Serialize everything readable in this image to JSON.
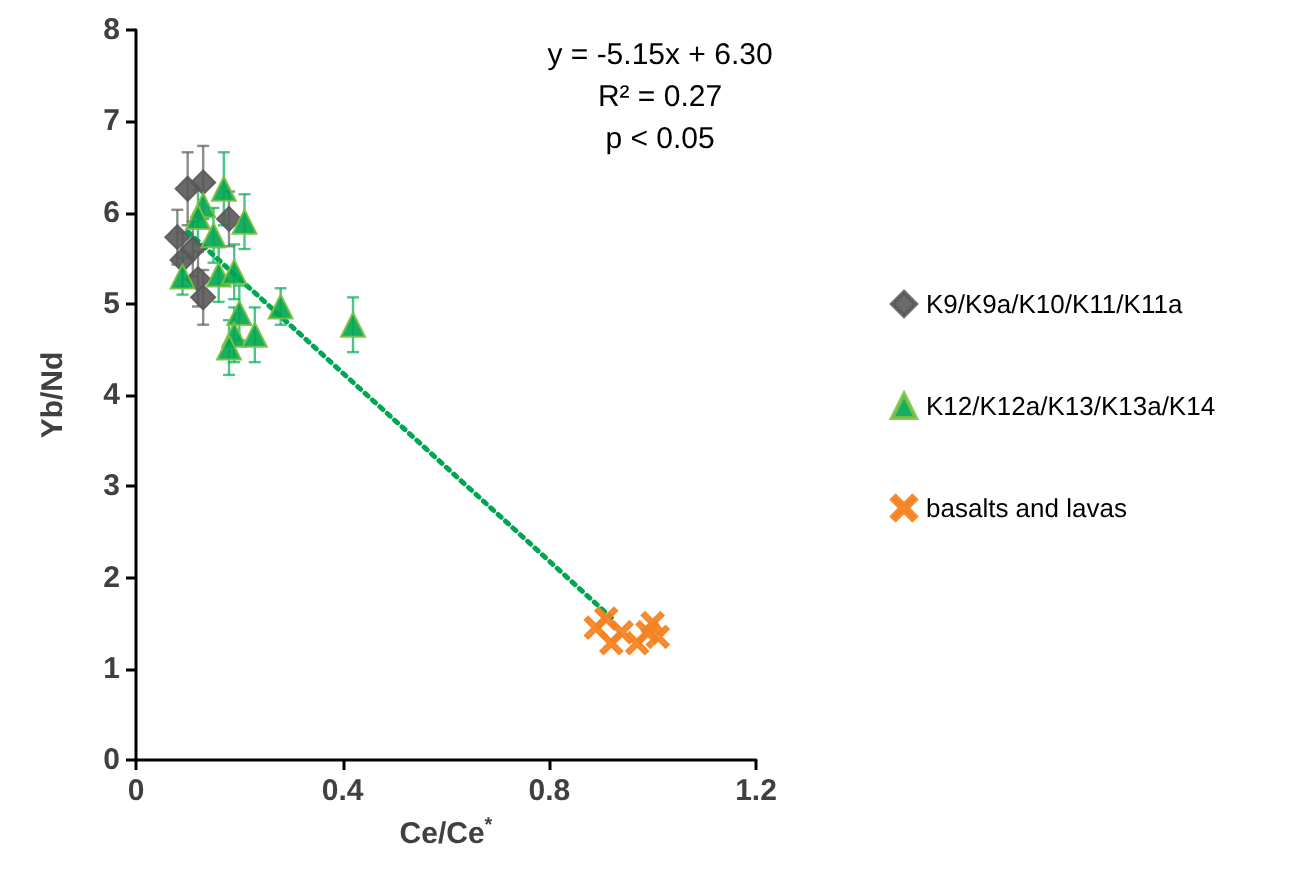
{
  "chart_data": {
    "type": "scatter",
    "xlabel": "Ce/Ce$^{*}$",
    "ylabel": "Yb/Nd",
    "xlim": [
      0,
      1.2
    ],
    "xticks": [
      0,
      0.4,
      0.8,
      1.2
    ],
    "ylim": [
      0,
      8
    ],
    "yticks": [
      0,
      1,
      2,
      3,
      4,
      5,
      6,
      7,
      8
    ],
    "grid": false,
    "legend": "right",
    "annotations": [
      "y = -5.15x + 6.30",
      "R² = 0.27",
      "p < 0.05"
    ],
    "series": [
      {
        "name": "K9/K9a/K10/K11/K11a",
        "color": "#595959",
        "marker": "diamond",
        "x": [
          0.1,
          0.13,
          0.08,
          0.09,
          0.12,
          0.13,
          0.18,
          0.14,
          0.11
        ],
        "values": [
          6.26,
          6.33,
          5.73,
          5.48,
          5.27,
          5.07,
          5.93,
          null,
          5.6
        ],
        "errors": [
          0.4,
          0.4,
          0.3,
          0.3,
          0.3,
          0.3,
          0.3,
          null,
          0.3
        ]
      },
      {
        "name": "K12/K12a/K13/K13a/K14",
        "color": "#00a651",
        "marker": "triangle",
        "x": [
          0.17,
          0.13,
          0.21,
          0.09,
          0.16,
          0.19,
          0.2,
          0.19,
          0.23,
          0.18,
          0.28,
          0.42,
          0.15,
          0.12
        ],
        "values": [
          6.26,
          6.08,
          5.9,
          5.3,
          5.32,
          5.35,
          4.9,
          4.66,
          4.66,
          4.52,
          4.97,
          4.77,
          5.75,
          5.95
        ],
        "errors": [
          0.4,
          null,
          0.3,
          0.2,
          0.3,
          0.3,
          0.3,
          0.3,
          0.3,
          0.3,
          0.2,
          0.3,
          0.3,
          0.3
        ]
      },
      {
        "name": "basalts and lavas",
        "color": "#f58220",
        "marker": "cross",
        "x": [
          0.89,
          0.91,
          0.92,
          0.97,
          0.94,
          1.0,
          1.01,
          0.99
        ],
        "values": [
          1.45,
          1.55,
          1.28,
          1.28,
          1.4,
          1.5,
          1.35,
          1.4
        ]
      },
      {
        "type": "line",
        "color": "#00a651",
        "line_style": "dotted",
        "marker": "none",
        "x": [
          0.1,
          0.92
        ],
        "values": [
          5.79,
          1.56
        ]
      }
    ]
  }
}
